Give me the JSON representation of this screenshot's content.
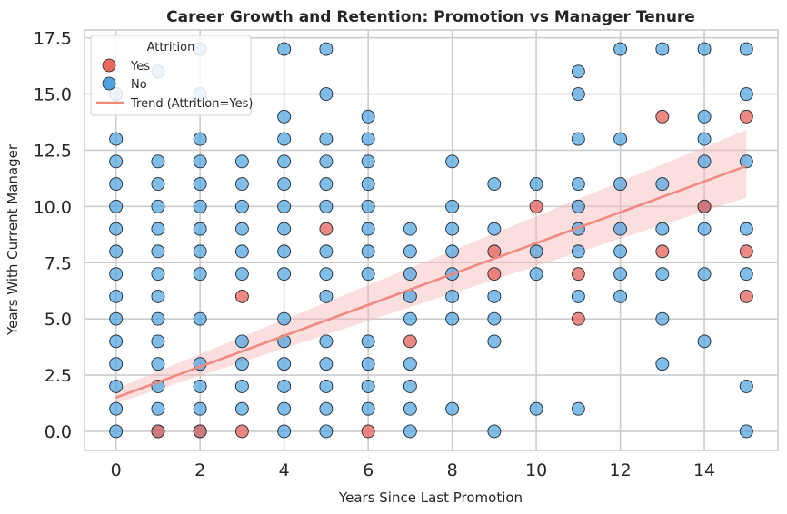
{
  "chart_data": {
    "type": "scatter",
    "title": "Career Growth and Retention: Promotion vs Manager Tenure",
    "xlabel": "Years Since Last Promotion",
    "ylabel": "Years With Current Manager",
    "xlim": [
      -0.75,
      15.75
    ],
    "ylim": [
      -0.85,
      17.85
    ],
    "x_ticks": [
      0,
      2,
      4,
      6,
      8,
      10,
      12,
      14
    ],
    "y_ticks": [
      0.0,
      2.5,
      5.0,
      7.5,
      10.0,
      12.5,
      15.0,
      17.5
    ],
    "grid": true,
    "legend": {
      "title": "Attrition",
      "placement": "top-left",
      "entries": [
        "Yes",
        "No",
        "Trend (Attrition=Yes)"
      ]
    },
    "colors": {
      "yes": "#e8675f",
      "no": "#4fa3e0",
      "trend": "#f08a7e",
      "band": "#f7b5b5"
    },
    "series": [
      {
        "name": "No",
        "points": [
          [
            0,
            0
          ],
          [
            0,
            1
          ],
          [
            0,
            2
          ],
          [
            0,
            3
          ],
          [
            0,
            4
          ],
          [
            0,
            5
          ],
          [
            0,
            6
          ],
          [
            0,
            7
          ],
          [
            0,
            8
          ],
          [
            0,
            9
          ],
          [
            0,
            10
          ],
          [
            0,
            11
          ],
          [
            0,
            12
          ],
          [
            0,
            13
          ],
          [
            0,
            15
          ],
          [
            1,
            0
          ],
          [
            1,
            1
          ],
          [
            1,
            2
          ],
          [
            1,
            3
          ],
          [
            1,
            4
          ],
          [
            1,
            5
          ],
          [
            1,
            6
          ],
          [
            1,
            7
          ],
          [
            1,
            8
          ],
          [
            1,
            9
          ],
          [
            1,
            10
          ],
          [
            1,
            11
          ],
          [
            1,
            12
          ],
          [
            1,
            16
          ],
          [
            2,
            0
          ],
          [
            2,
            1
          ],
          [
            2,
            2
          ],
          [
            2,
            3
          ],
          [
            2,
            5
          ],
          [
            2,
            7
          ],
          [
            2,
            8
          ],
          [
            2,
            9
          ],
          [
            2,
            10
          ],
          [
            2,
            11
          ],
          [
            2,
            12
          ],
          [
            2,
            13
          ],
          [
            2,
            15
          ],
          [
            2,
            17
          ],
          [
            3,
            1
          ],
          [
            3,
            2
          ],
          [
            3,
            3
          ],
          [
            3,
            4
          ],
          [
            3,
            7
          ],
          [
            3,
            8
          ],
          [
            3,
            9
          ],
          [
            3,
            10
          ],
          [
            3,
            11
          ],
          [
            3,
            12
          ],
          [
            4,
            0
          ],
          [
            4,
            1
          ],
          [
            4,
            2
          ],
          [
            4,
            3
          ],
          [
            4,
            4
          ],
          [
            4,
            5
          ],
          [
            4,
            7
          ],
          [
            4,
            8
          ],
          [
            4,
            9
          ],
          [
            4,
            10
          ],
          [
            4,
            11
          ],
          [
            4,
            12
          ],
          [
            4,
            13
          ],
          [
            4,
            14
          ],
          [
            4,
            17
          ],
          [
            5,
            0
          ],
          [
            5,
            1
          ],
          [
            5,
            2
          ],
          [
            5,
            3
          ],
          [
            5,
            4
          ],
          [
            5,
            6
          ],
          [
            5,
            7
          ],
          [
            5,
            8
          ],
          [
            5,
            10
          ],
          [
            5,
            11
          ],
          [
            5,
            12
          ],
          [
            5,
            13
          ],
          [
            5,
            15
          ],
          [
            5,
            17
          ],
          [
            6,
            1
          ],
          [
            6,
            2
          ],
          [
            6,
            3
          ],
          [
            6,
            4
          ],
          [
            6,
            7
          ],
          [
            6,
            8
          ],
          [
            6,
            9
          ],
          [
            6,
            10
          ],
          [
            6,
            11
          ],
          [
            6,
            12
          ],
          [
            6,
            13
          ],
          [
            6,
            14
          ],
          [
            7,
            0
          ],
          [
            7,
            1
          ],
          [
            7,
            2
          ],
          [
            7,
            3
          ],
          [
            7,
            5
          ],
          [
            7,
            6
          ],
          [
            7,
            7
          ],
          [
            7,
            8
          ],
          [
            7,
            9
          ],
          [
            8,
            1
          ],
          [
            8,
            5
          ],
          [
            8,
            6
          ],
          [
            8,
            7
          ],
          [
            8,
            8
          ],
          [
            8,
            9
          ],
          [
            8,
            10
          ],
          [
            8,
            12
          ],
          [
            9,
            0
          ],
          [
            9,
            4
          ],
          [
            9,
            5
          ],
          [
            9,
            6
          ],
          [
            9,
            9
          ],
          [
            9,
            11
          ],
          [
            10,
            1
          ],
          [
            10,
            7
          ],
          [
            10,
            8
          ],
          [
            10,
            11
          ],
          [
            11,
            1
          ],
          [
            11,
            6
          ],
          [
            11,
            8
          ],
          [
            11,
            9
          ],
          [
            11,
            10
          ],
          [
            11,
            11
          ],
          [
            11,
            13
          ],
          [
            11,
            15
          ],
          [
            11,
            16
          ],
          [
            12,
            6
          ],
          [
            12,
            7
          ],
          [
            12,
            8
          ],
          [
            12,
            9
          ],
          [
            12,
            11
          ],
          [
            12,
            13
          ],
          [
            12,
            17
          ],
          [
            13,
            3
          ],
          [
            13,
            5
          ],
          [
            13,
            7
          ],
          [
            13,
            9
          ],
          [
            13,
            11
          ],
          [
            13,
            17
          ],
          [
            14,
            4
          ],
          [
            14,
            7
          ],
          [
            14,
            9
          ],
          [
            14,
            10
          ],
          [
            14,
            12
          ],
          [
            14,
            13
          ],
          [
            14,
            14
          ],
          [
            14,
            17
          ],
          [
            15,
            0
          ],
          [
            15,
            2
          ],
          [
            15,
            7
          ],
          [
            15,
            9
          ],
          [
            15,
            12
          ],
          [
            15,
            15
          ],
          [
            15,
            17
          ]
        ]
      },
      {
        "name": "Yes",
        "points": [
          [
            1,
            0
          ],
          [
            2,
            0
          ],
          [
            3,
            0
          ],
          [
            6,
            0
          ],
          [
            3,
            6
          ],
          [
            5,
            9
          ],
          [
            7,
            4
          ],
          [
            9,
            7
          ],
          [
            9,
            8
          ],
          [
            10,
            10
          ],
          [
            11,
            5
          ],
          [
            11,
            7
          ],
          [
            13,
            8
          ],
          [
            13,
            14
          ],
          [
            14,
            10
          ],
          [
            15,
            6
          ],
          [
            15,
            8
          ],
          [
            15,
            14
          ]
        ]
      }
    ],
    "trend": {
      "name": "Trend (Attrition=Yes)",
      "x": [
        0,
        15
      ],
      "y": [
        1.5,
        11.8
      ],
      "ci_lower": [
        1.25,
        10.4
      ],
      "ci_upper": [
        1.9,
        13.4
      ]
    }
  }
}
